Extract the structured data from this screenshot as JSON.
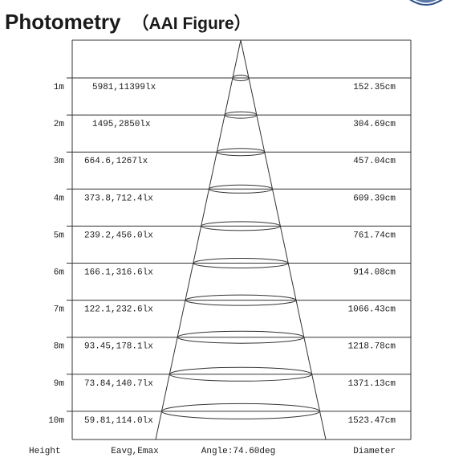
{
  "title": "Photometry",
  "subtitle": "（AAI Figure）",
  "icons": {
    "logo": "brand-logo-icon"
  },
  "colors": {
    "line": "#333333",
    "text": "#1a1a1a",
    "logo": "#2c4f86"
  },
  "chart_data": {
    "type": "table",
    "beam_angle_label": "Angle:74.60deg",
    "beam_angle_deg": 74.6,
    "headers": {
      "height": "Height",
      "illuminance": "Eavg,Emax",
      "diameter": "Diameter"
    },
    "rows": [
      {
        "height": "1m",
        "illuminance": "5981,11399lx",
        "diameter": "152.35cm"
      },
      {
        "height": "2m",
        "illuminance": "1495,2850lx",
        "diameter": "304.69cm"
      },
      {
        "height": "3m",
        "illuminance": "664.6,1267lx",
        "diameter": "457.04cm"
      },
      {
        "height": "4m",
        "illuminance": "373.8,712.4lx",
        "diameter": "609.39cm"
      },
      {
        "height": "5m",
        "illuminance": "239.2,456.0lx",
        "diameter": "761.74cm"
      },
      {
        "height": "6m",
        "illuminance": "166.1,316.6lx",
        "diameter": "914.08cm"
      },
      {
        "height": "7m",
        "illuminance": "122.1,232.6lx",
        "diameter": "1066.43cm"
      },
      {
        "height": "8m",
        "illuminance": "93.45,178.1lx",
        "diameter": "1218.78cm"
      },
      {
        "height": "9m",
        "illuminance": "73.84,140.7lx",
        "diameter": "1371.13cm"
      },
      {
        "height": "10m",
        "illuminance": "59.81,114.0lx",
        "diameter": "1523.47cm"
      }
    ]
  }
}
